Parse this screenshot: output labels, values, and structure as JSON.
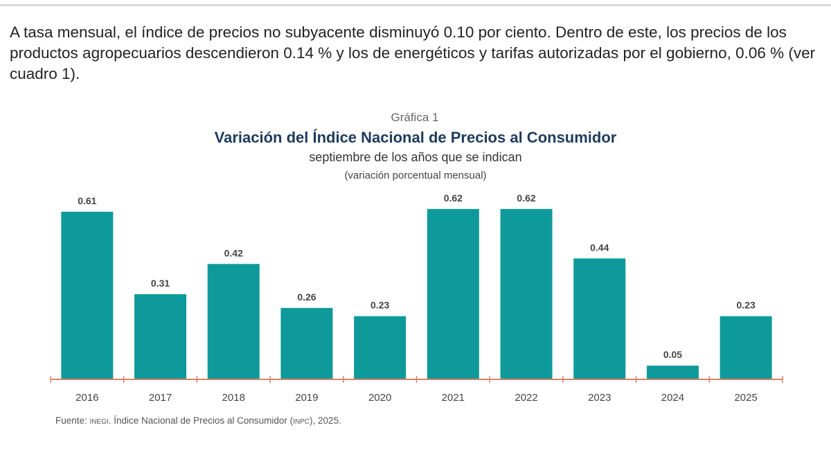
{
  "paragraph": "A tasa mensual, el índice de precios no subyacente disminuyó 0.10 por ciento. Dentro de este, los precios de los productos agropecuarios descendieron 0.14 % y los de energéticos y tarifas autorizadas por el gobierno, 0.06 % (ver cuadro 1).",
  "chart_data": {
    "type": "bar",
    "label": "Gráfica 1",
    "title": "Variación del Índice Nacional de Precios al Consumidor",
    "subtitle": "septiembre de los años que se indican",
    "unit_note": "(variación porcentual mensual)",
    "categories": [
      "2016",
      "2017",
      "2018",
      "2019",
      "2020",
      "2021",
      "2022",
      "2023",
      "2024",
      "2025"
    ],
    "values": [
      0.61,
      0.31,
      0.42,
      0.26,
      0.23,
      0.62,
      0.62,
      0.44,
      0.05,
      0.23
    ],
    "data_labels": [
      "0.61",
      "0.31",
      "0.42",
      "0.26",
      "0.23",
      "0.62",
      "0.62",
      "0.44",
      "0.05",
      "0.23"
    ],
    "ylim": [
      0,
      0.65
    ],
    "grid": false,
    "legend": "none",
    "bar_color": "#0e9a9a",
    "axis_color": "#d9826a"
  },
  "source": {
    "prefix": "Fuente: ",
    "org": "INEGI",
    "text": ". Índice Nacional de Precios al Consumidor (",
    "abbr": "INPC",
    "suffix": "), 2025."
  }
}
